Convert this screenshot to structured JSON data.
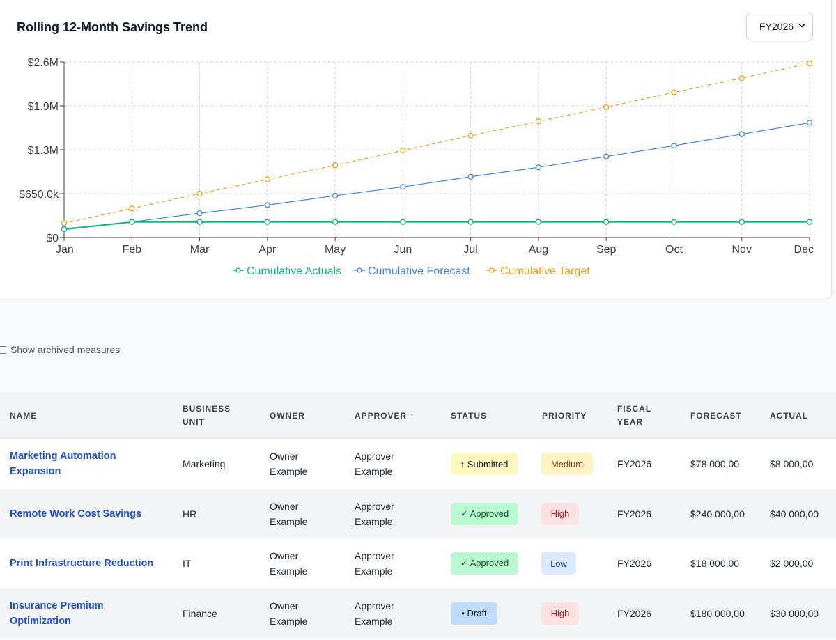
{
  "chart": {
    "title": "Rolling 12-Month Savings Trend",
    "fiscal_year_select": "FY2026"
  },
  "chart_data": {
    "type": "line",
    "x": [
      "Jan",
      "Feb",
      "Mar",
      "Apr",
      "May",
      "Jun",
      "Jul",
      "Aug",
      "Sep",
      "Oct",
      "Nov",
      "Dec"
    ],
    "y_ticks": [
      "$0",
      "$650.0k",
      "$1.3M",
      "$1.9M",
      "$2.6M"
    ],
    "ylim": [
      0,
      2600000
    ],
    "grid": true,
    "legend_position": "bottom",
    "series": [
      {
        "name": "Cumulative Actuals",
        "color": "#10b981",
        "style": "solid",
        "values": [
          120000,
          230000,
          230000,
          230000,
          230000,
          230000,
          230000,
          230000,
          230000,
          230000,
          230000,
          230000
        ]
      },
      {
        "name": "Cumulative Forecast",
        "color": "#3b82f6",
        "style": "solid",
        "values": [
          130000,
          230000,
          360000,
          480000,
          620000,
          750000,
          900000,
          1040000,
          1200000,
          1360000,
          1530000,
          1700000
        ]
      },
      {
        "name": "Cumulative Target",
        "color": "#f59e0b",
        "style": "dashed",
        "values": [
          210000,
          430000,
          650000,
          860000,
          1070000,
          1290000,
          1510000,
          1720000,
          1930000,
          2150000,
          2360000,
          2580000
        ]
      }
    ]
  },
  "archived_label": "Show archived measures",
  "table": {
    "headers": {
      "name": "NAME",
      "business_unit_1": "BUSINESS",
      "business_unit_2": "UNIT",
      "owner": "OWNER",
      "approver": "APPROVER ↑",
      "status": "STATUS",
      "priority": "PRIORITY",
      "fiscal_year_1": "FISCAL",
      "fiscal_year_2": "YEAR",
      "forecast": "FORECAST",
      "actual": "ACTUAL"
    },
    "rows": [
      {
        "name_1": "Marketing Automation",
        "name_2": "Expansion",
        "business_unit": "Marketing",
        "owner_1": "Owner",
        "owner_2": "Example",
        "approver_1": "Approver",
        "approver_2": "Example",
        "status": "↑ Submitted",
        "priority": "Medium",
        "fiscal_year": "FY2026",
        "forecast": "$78 000,00",
        "actual": "$8 000,00"
      },
      {
        "name_1": "Remote Work Cost Savings",
        "name_2": "",
        "business_unit": "HR",
        "owner_1": "Owner",
        "owner_2": "Example",
        "approver_1": "Approver",
        "approver_2": "Example",
        "status": "✓ Approved",
        "priority": "High",
        "fiscal_year": "FY2026",
        "forecast": "$240 000,00",
        "actual": "$40 000,00"
      },
      {
        "name_1": "Print Infrastructure Reduction",
        "name_2": "",
        "business_unit": "IT",
        "owner_1": "Owner",
        "owner_2": "Example",
        "approver_1": "Approver",
        "approver_2": "Example",
        "status": "✓ Approved",
        "priority": "Low",
        "fiscal_year": "FY2026",
        "forecast": "$18 000,00",
        "actual": "$2 000,00"
      },
      {
        "name_1": "Insurance Premium",
        "name_2": "Optimization",
        "business_unit": "Finance",
        "owner_1": "Owner",
        "owner_2": "Example",
        "approver_1": "Approver",
        "approver_2": "Example",
        "status": "• Draft",
        "priority": "High",
        "fiscal_year": "FY2026",
        "forecast": "$180 000,00",
        "actual": "$30 000,00"
      }
    ]
  },
  "colors": {
    "submitted_bg": "#fef9c3",
    "approved_bg": "#bbf7d0",
    "draft_bg": "#bfdbfe",
    "priority_medium_bg": "#fef3c7",
    "priority_medium_fg": "#92400e",
    "priority_high_bg": "#fee2e2",
    "priority_high_fg": "#b91c1c",
    "priority_low_bg": "#dbeafe",
    "priority_low_fg": "#1e40af",
    "link": "#1d4ed8"
  }
}
